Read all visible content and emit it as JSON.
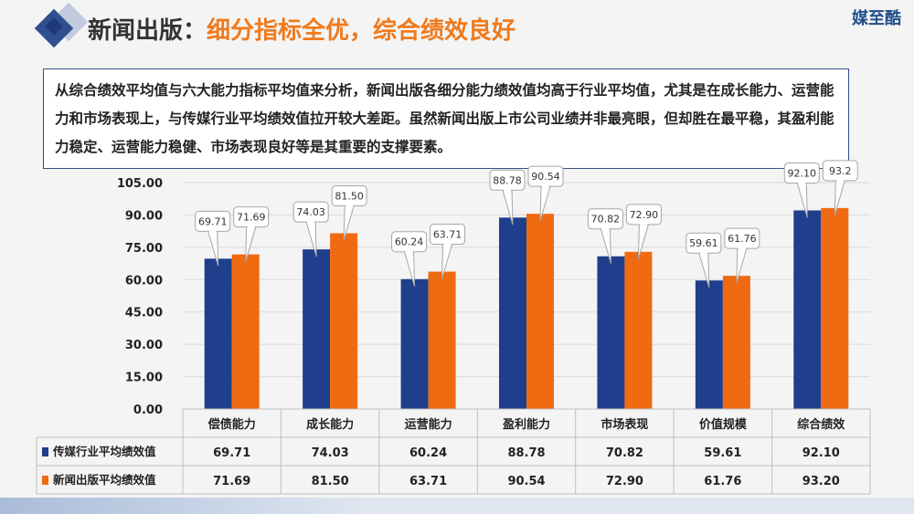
{
  "header": {
    "title_part1": "新闻出版：",
    "title_part2": "细分指标全优，综合绩效良好",
    "brand": "媒至酷"
  },
  "intro": {
    "text": "从综合绩效平均值与六大能力指标平均值来分析，新闻出版各细分能力绩效值均高于行业平均值，尤其是在成长能力、运营能力和市场表现上，与传媒行业平均绩效值拉开较大差距。虽然新闻出版上市公司业绩并非最亮眼，但却胜在最平稳，其盈利能力稳定、运营能力稳健、市场表现良好等是其重要的支撑要素。"
  },
  "colors": {
    "industry": "#1f3f8c",
    "publishing": "#f06a12",
    "title_accent": "#f07a1c"
  },
  "chart_data": {
    "type": "bar",
    "categories": [
      "偿债能力",
      "成长能力",
      "运营能力",
      "盈利能力",
      "市场表现",
      "价值规模",
      "综合绩效"
    ],
    "series": [
      {
        "name": "传媒行业平均绩效值",
        "values": [
          69.71,
          74.03,
          60.24,
          88.78,
          70.82,
          59.61,
          92.1
        ],
        "labels": [
          "69.71",
          "74.03",
          "60.24",
          "88.78",
          "70.82",
          "59.61",
          "92.10"
        ],
        "table_values": [
          "69.71",
          "74.03",
          "60.24",
          "88.78",
          "70.82",
          "59.61",
          "92.10"
        ]
      },
      {
        "name": "新闻出版平均绩效值",
        "values": [
          71.69,
          81.5,
          63.71,
          90.54,
          72.9,
          61.76,
          93.2
        ],
        "labels": [
          "71.69",
          "81.50",
          "63.71",
          "90.54",
          "72.90",
          "61.76",
          "93.2"
        ],
        "table_values": [
          "71.69",
          "81.50",
          "63.71",
          "90.54",
          "72.90",
          "61.76",
          "93.20"
        ]
      }
    ],
    "ylim": [
      0,
      105
    ],
    "yticks": [
      "0.00",
      "15.00",
      "30.00",
      "45.00",
      "60.00",
      "75.00",
      "90.00",
      "105.00"
    ],
    "ytick_values": [
      0,
      15,
      30,
      45,
      60,
      75,
      90,
      105
    ],
    "grid": true,
    "legend": "data table"
  }
}
